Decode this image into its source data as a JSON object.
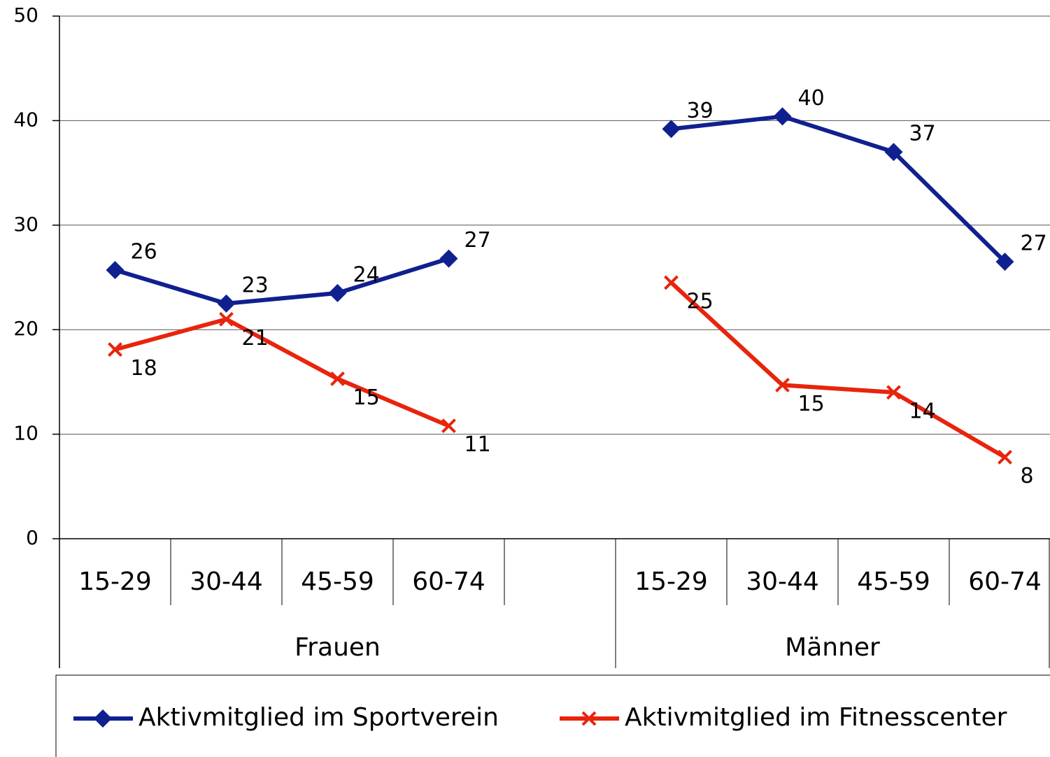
{
  "chart_data": {
    "type": "line",
    "categories": [
      "15-29",
      "30-44",
      "45-59",
      "60-74",
      null,
      "15-29",
      "30-44",
      "45-59",
      "60-74"
    ],
    "groups": [
      {
        "label": "Frauen",
        "span": 5
      },
      {
        "label": "Männer",
        "span": 4
      }
    ],
    "series": [
      {
        "name": "Aktivmitglied im Sportverein",
        "color": "#10208f",
        "marker": "diamond",
        "values": [
          25.7,
          22.5,
          23.5,
          26.8,
          null,
          39.2,
          40.4,
          37.0,
          26.5
        ],
        "value_labels": [
          "26",
          "23",
          "24",
          "27",
          null,
          "39",
          "40",
          "37",
          "27"
        ]
      },
      {
        "name": "Aktivmitglied im Fitnesscenter",
        "color": "#e8240c",
        "marker": "x",
        "values": [
          18.1,
          21.0,
          15.3,
          10.8,
          null,
          24.5,
          14.7,
          14.0,
          7.8
        ],
        "value_labels": [
          "18",
          "21",
          "15",
          "11",
          null,
          "25",
          "15",
          "14",
          "8"
        ]
      }
    ],
    "ylim": [
      0,
      50
    ],
    "yticks": [
      0,
      10,
      20,
      30,
      40,
      50
    ],
    "grid": true,
    "legend": "bottom"
  }
}
